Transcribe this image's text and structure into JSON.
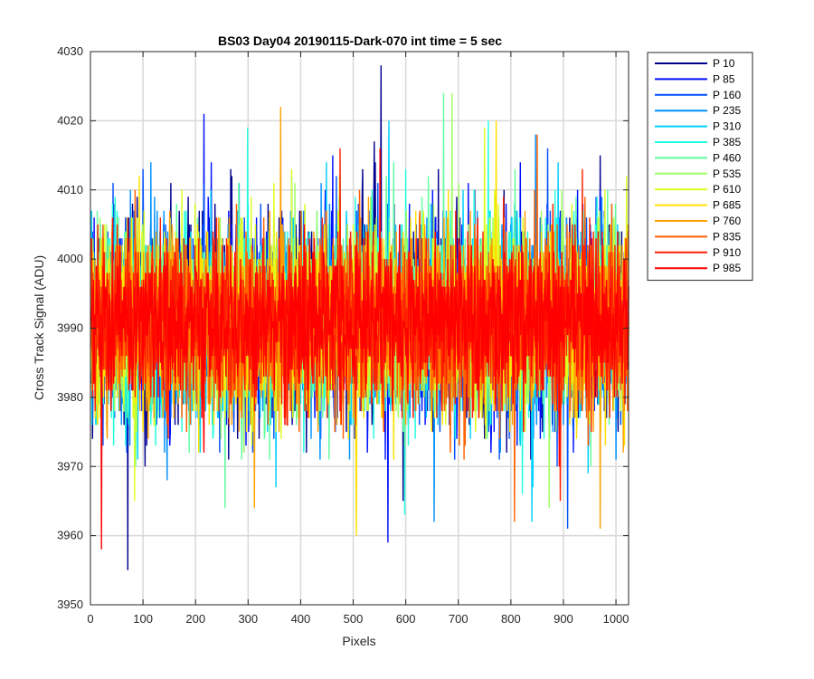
{
  "chart_data": {
    "type": "line",
    "title": "BS03 Day04 20190115-Dark-070 int time = 5 sec",
    "xlabel": "Pixels",
    "ylabel": "Cross Track Signal (ADU)",
    "xlim": [
      0,
      1024
    ],
    "ylim": [
      3950,
      4030
    ],
    "xticks": [
      0,
      100,
      200,
      300,
      400,
      500,
      600,
      700,
      800,
      900,
      1000
    ],
    "yticks": [
      3950,
      3960,
      3970,
      3980,
      3990,
      4000,
      4010,
      4020,
      4030
    ],
    "grid": true,
    "legend_position": "outside-top-right",
    "series": [
      {
        "name": "P 10",
        "color": "#00008f",
        "mean": 3991,
        "std": 7.5,
        "min": 3955,
        "max": 4028,
        "seed": 11
      },
      {
        "name": "P 85",
        "color": "#0010ff",
        "mean": 3991,
        "std": 7.0,
        "min": 3959,
        "max": 4021,
        "seed": 23
      },
      {
        "name": "P 160",
        "color": "#0050ff",
        "mean": 3991,
        "std": 7.0,
        "min": 3961,
        "max": 4016,
        "seed": 37
      },
      {
        "name": "P 235",
        "color": "#0090ff",
        "mean": 3991,
        "std": 7.0,
        "min": 3962,
        "max": 4018,
        "seed": 41
      },
      {
        "name": "P 310",
        "color": "#00d0ff",
        "mean": 3991,
        "std": 7.0,
        "min": 3962,
        "max": 4020,
        "seed": 53
      },
      {
        "name": "P 385",
        "color": "#20ffdf",
        "mean": 3991,
        "std": 6.8,
        "min": 3963,
        "max": 4020,
        "seed": 67
      },
      {
        "name": "P 460",
        "color": "#60ff9f",
        "mean": 3991,
        "std": 6.8,
        "min": 3964,
        "max": 4024,
        "seed": 71
      },
      {
        "name": "P 535",
        "color": "#9fff60",
        "mean": 3991,
        "std": 6.8,
        "min": 3964,
        "max": 4024,
        "seed": 83
      },
      {
        "name": "P 610",
        "color": "#dfff20",
        "mean": 3991,
        "std": 6.8,
        "min": 3965,
        "max": 4019,
        "seed": 97
      },
      {
        "name": "P 685",
        "color": "#ffe000",
        "mean": 3991,
        "std": 6.6,
        "min": 3960,
        "max": 4020,
        "seed": 101
      },
      {
        "name": "P 760",
        "color": "#ffa000",
        "mean": 3991,
        "std": 6.6,
        "min": 3961,
        "max": 4022,
        "seed": 113
      },
      {
        "name": "P 835",
        "color": "#ff6000",
        "mean": 3991,
        "std": 6.5,
        "min": 3962,
        "max": 4018,
        "seed": 127
      },
      {
        "name": "P 910",
        "color": "#ff2000",
        "mean": 3991,
        "std": 6.0,
        "min": 3965,
        "max": 4016,
        "seed": 131
      },
      {
        "name": "P 985",
        "color": "#ff0000",
        "mean": 3991,
        "std": 5.5,
        "min": 3958,
        "max": 4016,
        "seed": 139
      }
    ]
  }
}
